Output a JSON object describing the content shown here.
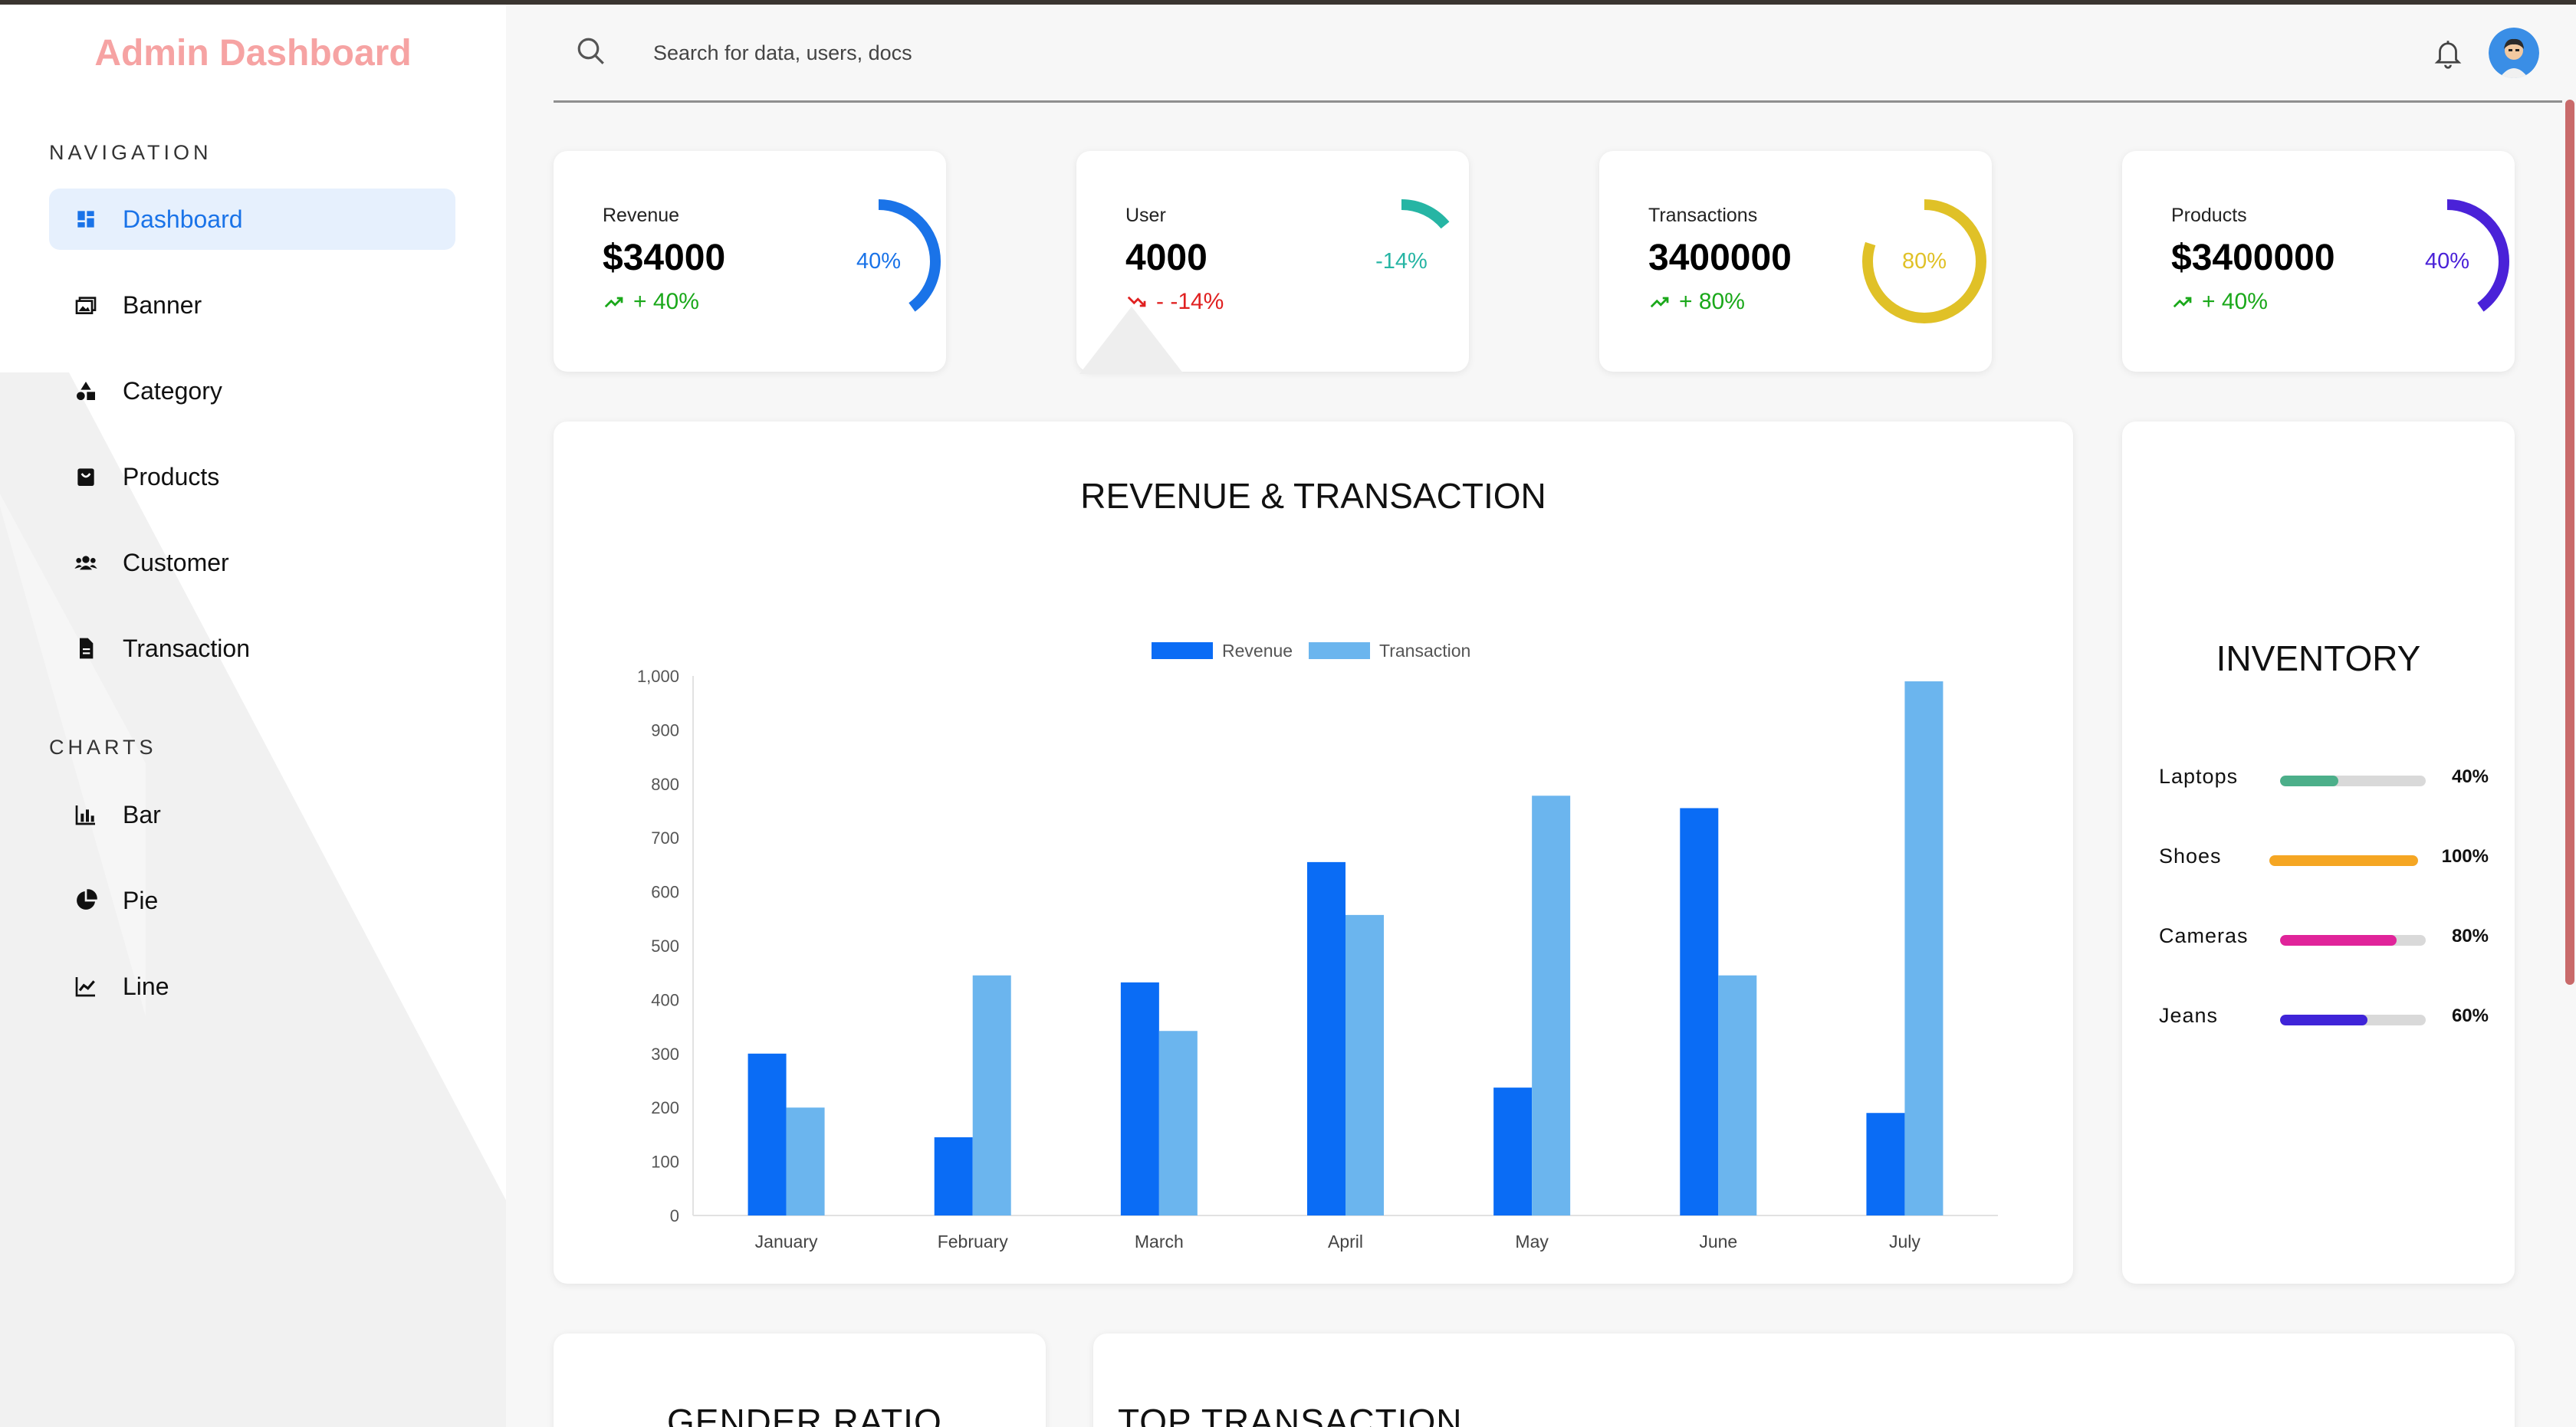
{
  "brand": "Admin Dashboard",
  "sidebar": {
    "navigation_label": "NAVIGATION",
    "navigation": [
      {
        "label": "Dashboard",
        "icon": "dashboard-icon",
        "active": true
      },
      {
        "label": "Banner",
        "icon": "banner-icon"
      },
      {
        "label": "Category",
        "icon": "category-icon"
      },
      {
        "label": "Products",
        "icon": "products-icon"
      },
      {
        "label": "Customer",
        "icon": "customer-icon"
      },
      {
        "label": "Transaction",
        "icon": "transaction-icon"
      }
    ],
    "charts_label": "CHARTS",
    "charts": [
      {
        "label": "Bar",
        "icon": "bar-chart-icon"
      },
      {
        "label": "Pie",
        "icon": "pie-chart-icon"
      },
      {
        "label": "Line",
        "icon": "line-chart-icon"
      }
    ]
  },
  "header": {
    "search_placeholder": "Search for data, users, docs",
    "icons": [
      "search-icon",
      "bell-icon",
      "avatar"
    ]
  },
  "stats": [
    {
      "label": "Revenue",
      "value": "$34000",
      "change": "+ 40%",
      "trend": "up",
      "ring_text": "40%",
      "ring_percent": 40,
      "color": "#1a73e8"
    },
    {
      "label": "User",
      "value": "4000",
      "change": "- -14%",
      "trend": "down",
      "ring_text": "-14%",
      "ring_percent": 14,
      "color": "#26b5a4"
    },
    {
      "label": "Transactions",
      "value": "3400000",
      "change": "+ 80%",
      "trend": "up",
      "ring_text": "80%",
      "ring_percent": 80,
      "color": "#e0c127"
    },
    {
      "label": "Products",
      "value": "$3400000",
      "change": "+ 40%",
      "trend": "up",
      "ring_text": "40%",
      "ring_percent": 40,
      "color": "#4a22d8"
    }
  ],
  "revenue_chart": {
    "title": "REVENUE & TRANSACTION"
  },
  "chart_data": {
    "type": "bar",
    "categories": [
      "January",
      "February",
      "March",
      "April",
      "May",
      "June",
      "July"
    ],
    "series": [
      {
        "name": "Revenue",
        "values": [
          300,
          145,
          432,
          655,
          237,
          755,
          190
        ],
        "color": "#0a6cf5"
      },
      {
        "name": "Transaction",
        "values": [
          200,
          445,
          342,
          557,
          778,
          445,
          990
        ],
        "color": "#6bb5ee"
      }
    ],
    "ylim": [
      0,
      1000
    ],
    "yticks": [
      "0",
      "100",
      "200",
      "300",
      "400",
      "500",
      "600",
      "700",
      "800",
      "900",
      "1,000"
    ],
    "legend": "top-center",
    "grid": false
  },
  "inventory": {
    "title": "INVENTORY",
    "items": [
      {
        "name": "Laptops",
        "percent": 40,
        "percent_label": "40%",
        "color": "#4caf8a"
      },
      {
        "name": "Shoes",
        "percent": 100,
        "percent_label": "100%",
        "color": "#f5a623"
      },
      {
        "name": "Cameras",
        "percent": 80,
        "percent_label": "80%",
        "color": "#e0249a"
      },
      {
        "name": "Jeans",
        "percent": 60,
        "percent_label": "60%",
        "color": "#3f24d8"
      }
    ]
  },
  "bottom": {
    "gender_title": "GENDER RATIO",
    "top_title": "TOP TRANSACTION"
  }
}
